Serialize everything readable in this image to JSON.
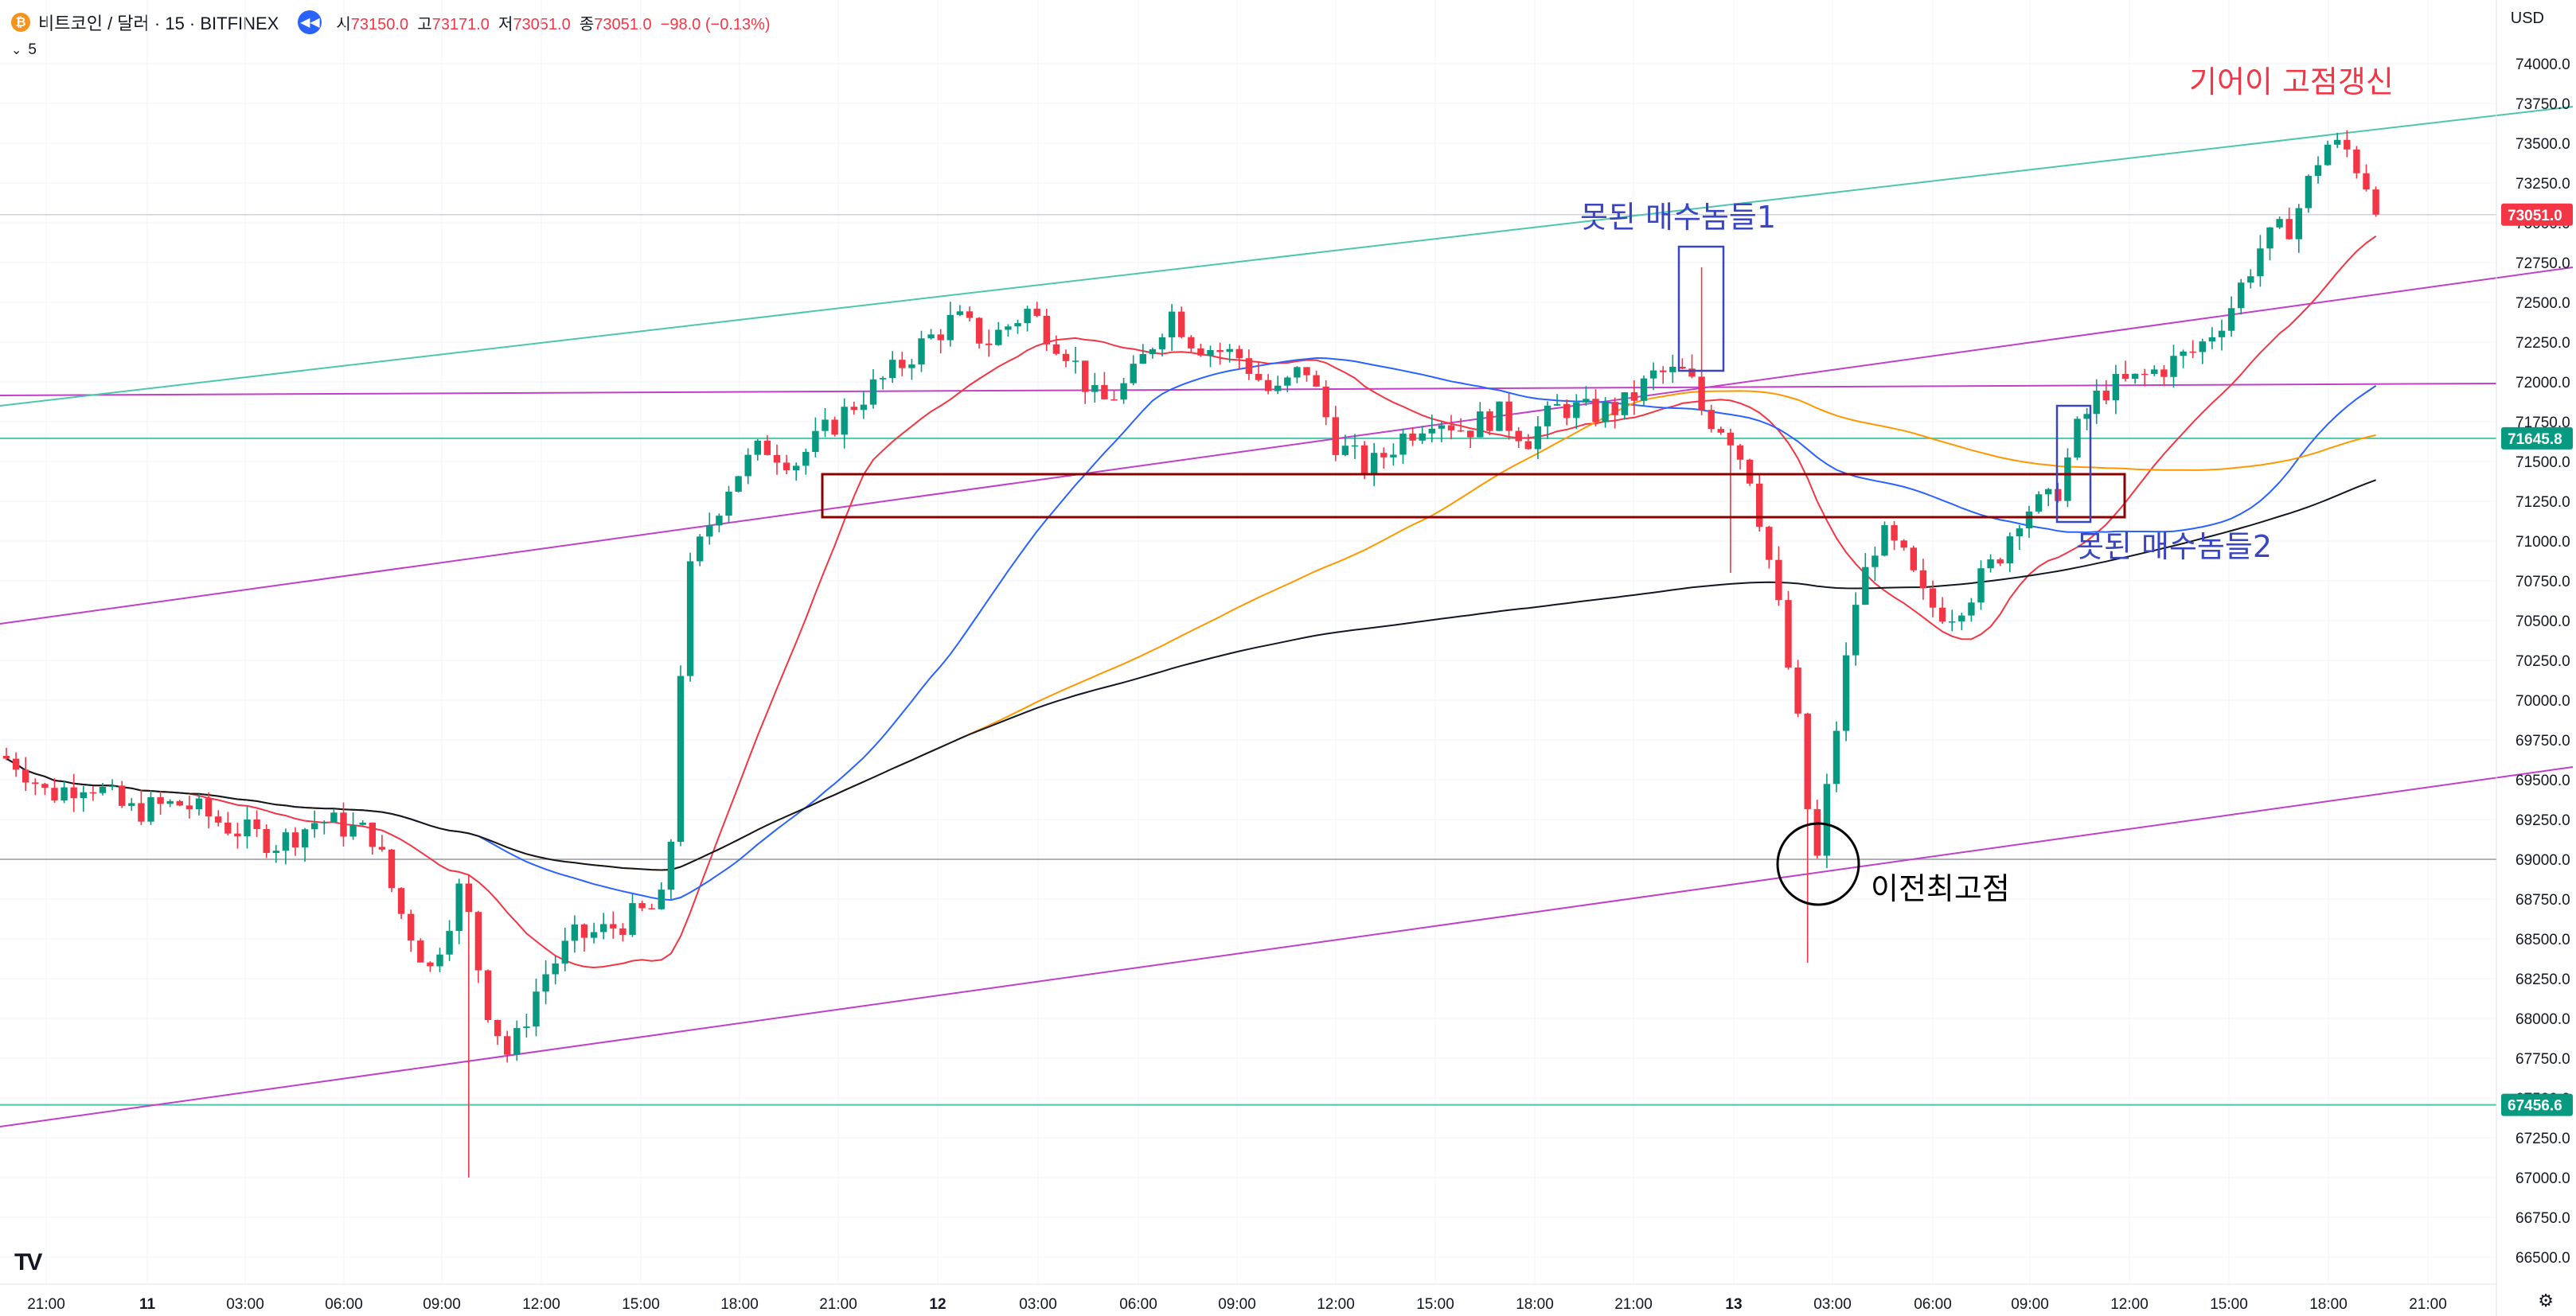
{
  "header": {
    "coin_icon": "bitcoin-icon",
    "symbol": "비트코인 / 달러 · 15 · BITFINEX",
    "replay_icon": "rewind-icon",
    "ohlc": {
      "open_label": "시",
      "open": "73150.0",
      "high_label": "고",
      "high": "73171.0",
      "low_label": "저",
      "low": "73051.0",
      "close_label": "종",
      "close": "73051.0",
      "change": "−98.0 (−0.13%)"
    },
    "indicator_count": "5",
    "currency": "USD"
  },
  "colors": {
    "up": "#089981",
    "down": "#f23645",
    "ma20": "#f23645",
    "ma50": "#2962ff",
    "ma100": "#ff9800",
    "ma200": "#131722",
    "channel_purple": "#c040c8",
    "channel_teal": "#4cc7ae",
    "box_dark_red": "#8b0000",
    "annot_blue": "#3a45c0",
    "annot_red": "#f23645"
  },
  "chart_data": {
    "type": "candlestick",
    "y_axis": {
      "min": 66250,
      "max": 74250,
      "ticks": [
        "74000.0",
        "73750.0",
        "73500.0",
        "73250.0",
        "73000.0",
        "72750.0",
        "72500.0",
        "72250.0",
        "72000.0",
        "71750.0",
        "71500.0",
        "71250.0",
        "71000.0",
        "70750.0",
        "70500.0",
        "70250.0",
        "70000.0",
        "69750.0",
        "69500.0",
        "69250.0",
        "69000.0",
        "68750.0",
        "68500.0",
        "68250.0",
        "68000.0",
        "67750.0",
        "67500.0",
        "67250.0",
        "67000.0",
        "66750.0",
        "66500.0"
      ]
    },
    "x_axis": {
      "labels": [
        "21:00",
        "11",
        "03:00",
        "06:00",
        "09:00",
        "12:00",
        "15:00",
        "18:00",
        "21:00",
        "12",
        "03:00",
        "06:00",
        "09:00",
        "12:00",
        "15:00",
        "18:00",
        "21:00",
        "13",
        "03:00",
        "06:00",
        "09:00",
        "12:00",
        "15:00",
        "18:00",
        "21:00"
      ]
    },
    "price_tags": [
      {
        "value": "73051.0",
        "kind": "last",
        "color": "#f23645"
      },
      {
        "value": "71645.8",
        "kind": "level",
        "color": "#089981"
      },
      {
        "value": "67456.6",
        "kind": "level",
        "color": "#089981"
      }
    ],
    "levels": [
      71645.8,
      67456.6,
      73051.0,
      69000,
      72000
    ],
    "moving_averages": [
      "MA20",
      "MA50",
      "MA100",
      "MA200"
    ],
    "key_prices": {
      "start": 69650,
      "dip_low": 67750,
      "breakout_high": 72550,
      "day12_range": [
        71400,
        72550
      ],
      "drop_low": 68900,
      "wick_low": 68350,
      "recovery": 71300,
      "final_high": 73550,
      "last": 73051.0
    },
    "annotations": [
      {
        "id": "failed1",
        "text": "못된 매수놈들1",
        "color": "blue"
      },
      {
        "id": "failed2",
        "text": "못된 매수놈들2",
        "color": "blue"
      },
      {
        "id": "prevhigh",
        "text": "이전최고점",
        "color": "black"
      },
      {
        "id": "newhigh",
        "text": "기어이 고점갱신",
        "color": "red"
      }
    ]
  },
  "footer": {
    "logo": "TV",
    "settings_icon": "gear-icon"
  }
}
